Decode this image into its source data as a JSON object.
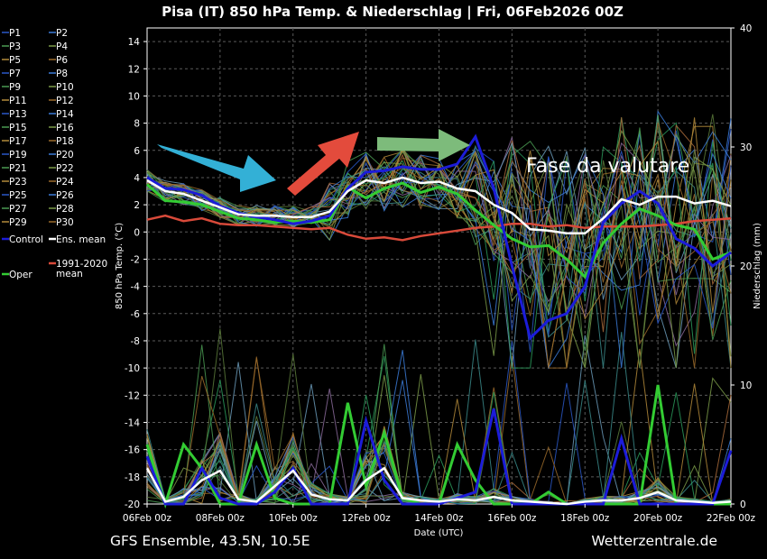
{
  "chart_data": {
    "type": "line",
    "title": "Pisa  (IT)  850 hPa Temp. & Niederschlag | Fri, 06Feb2026 00Z",
    "xlabel": "Date (UTC)",
    "ylabel_left": "850 hPa Temp. (°C)",
    "ylabel_right": "Niederschlag (mm)",
    "ylim_left": [
      -20,
      15
    ],
    "ylim_right": [
      0,
      40
    ],
    "yticks_left": [
      "14",
      "12",
      "10",
      "8",
      "6",
      "4",
      "2",
      "0",
      "-2",
      "-4",
      "-6",
      "-8",
      "-10",
      "-12",
      "-14",
      "-16",
      "-18",
      "-20"
    ],
    "yticks_right": [
      "40",
      "30",
      "20",
      "10",
      "0"
    ],
    "xticks": [
      "06Feb 00z",
      "08Feb 00z",
      "10Feb 00z",
      "12Feb 00z",
      "14Feb 00z",
      "16Feb 00z",
      "18Feb 00z",
      "20Feb 00z",
      "22Feb 00z"
    ],
    "x_days": [
      6,
      6.5,
      7,
      7.5,
      8,
      8.5,
      9,
      9.5,
      10,
      10.5,
      11,
      11.5,
      12,
      12.5,
      13,
      13.5,
      14,
      14.5,
      15,
      15.5,
      16,
      16.5,
      17,
      17.5,
      18,
      18.5,
      19,
      19.5,
      20,
      20.5,
      21,
      21.5,
      22
    ],
    "ens_mean": [
      3.8,
      3.0,
      2.8,
      2.3,
      1.8,
      1.3,
      1.2,
      1.2,
      1.1,
      1.1,
      1.5,
      3.0,
      3.8,
      3.6,
      4.0,
      3.6,
      3.7,
      3.2,
      3.0,
      2.0,
      1.4,
      0.2,
      0.1,
      -0.1,
      -0.1,
      1.0,
      2.4,
      2.0,
      2.6,
      2.6,
      2.1,
      2.3,
      1.9
    ],
    "control": [
      4.0,
      3.2,
      3.1,
      2.7,
      1.9,
      1.4,
      1.1,
      0.9,
      0.6,
      0.8,
      1.2,
      3.2,
      4.4,
      4.5,
      4.8,
      4.6,
      4.6,
      5.0,
      7.0,
      3.2,
      -2.5,
      -7.8,
      -6.5,
      -6.0,
      -4.0,
      0.7,
      2.1,
      3.0,
      2.1,
      -0.5,
      -1.2,
      -2.5,
      -1.5
    ],
    "oper": [
      3.5,
      2.3,
      2.2,
      2.0,
      1.5,
      1.0,
      0.9,
      0.7,
      0.8,
      0.7,
      0.9,
      3.3,
      2.5,
      3.2,
      3.6,
      2.9,
      3.3,
      2.8,
      1.6,
      0.5,
      -0.5,
      -1.1,
      -1.0,
      -2.0,
      -3.3,
      -0.8,
      0.6,
      1.7,
      1.2,
      0.5,
      0.2,
      -2.0,
      -1.5
    ],
    "climate_mean": [
      0.9,
      1.2,
      0.8,
      1.0,
      0.6,
      0.5,
      0.5,
      0.4,
      0.3,
      0.2,
      0.3,
      -0.2,
      -0.5,
      -0.4,
      -0.6,
      -0.3,
      -0.1,
      0.1,
      0.3,
      0.4,
      0.6,
      0.6,
      0.4,
      0.5,
      0.3,
      0.4,
      0.4,
      0.4,
      0.5,
      0.6,
      0.8,
      0.9,
      1.0
    ],
    "precip_mean": [
      3.0,
      0.2,
      0.6,
      2.0,
      2.8,
      0.4,
      0.2,
      1.5,
      2.8,
      0.8,
      0.4,
      0.3,
      2.0,
      3.0,
      0.5,
      0.3,
      0.2,
      0.4,
      0.3,
      0.6,
      0.3,
      0.2,
      0.1,
      0.0,
      0.2,
      0.3,
      0.3,
      0.5,
      1.0,
      0.3,
      0.2,
      0.1,
      0.2
    ],
    "precip_control": [
      4.0,
      0.0,
      0.0,
      3.0,
      0.5,
      0.0,
      0.0,
      1.0,
      3.0,
      0.0,
      0.0,
      0.0,
      7.0,
      2.0,
      0.0,
      0.0,
      0.0,
      0.5,
      1.0,
      8.0,
      0.0,
      0.0,
      0.0,
      0.0,
      0.0,
      0.0,
      5.5,
      0.0,
      0.0,
      0.0,
      0.0,
      0.0,
      4.5
    ],
    "precip_oper": [
      5.0,
      0.0,
      5.0,
      3.0,
      0.0,
      0.0,
      5.0,
      0.5,
      0.0,
      0.0,
      0.0,
      8.5,
      1.5,
      6.0,
      0.5,
      0.0,
      0.0,
      5.0,
      2.0,
      0.0,
      0.0,
      0.0,
      1.0,
      0.0,
      0.0,
      0.0,
      0.0,
      0.0,
      10.0,
      0.0,
      0.0,
      0.0,
      0.0
    ],
    "legend": [
      "P1",
      "P2",
      "P3",
      "P4",
      "P5",
      "P6",
      "P7",
      "P8",
      "P9",
      "P10",
      "P11",
      "P12",
      "P13",
      "P14",
      "P15",
      "P16",
      "P17",
      "P18",
      "P19",
      "P20",
      "P21",
      "P22",
      "P23",
      "P24",
      "P25",
      "P26",
      "P27",
      "P28",
      "P29",
      "P30",
      "Control",
      "Ens. mean",
      "1991-2020 mean",
      "Oper"
    ],
    "grid": true,
    "annotation": "Fase da valutare"
  },
  "colors": {
    "control": "#1c1cd9",
    "ens_mean": "#ffffff",
    "climate": "#d94a3a",
    "oper": "#33cc33",
    "arrow_blue": "#33b0d6",
    "arrow_red": "#e34b3c",
    "arrow_green": "#7dbb7b",
    "members": [
      "#2a58c8",
      "#3b7bd8",
      "#4a9a52",
      "#7a9a48",
      "#b38a3a",
      "#9a6a2a",
      "#6a9ab8",
      "#3a8a8a",
      "#2a9a5a",
      "#8a6a9a",
      "#a86a3a",
      "#5a7a3a"
    ]
  },
  "footer": {
    "left": "GFS Ensemble, 43.5N, 10.5E",
    "right": "Wetterzentrale.de"
  }
}
